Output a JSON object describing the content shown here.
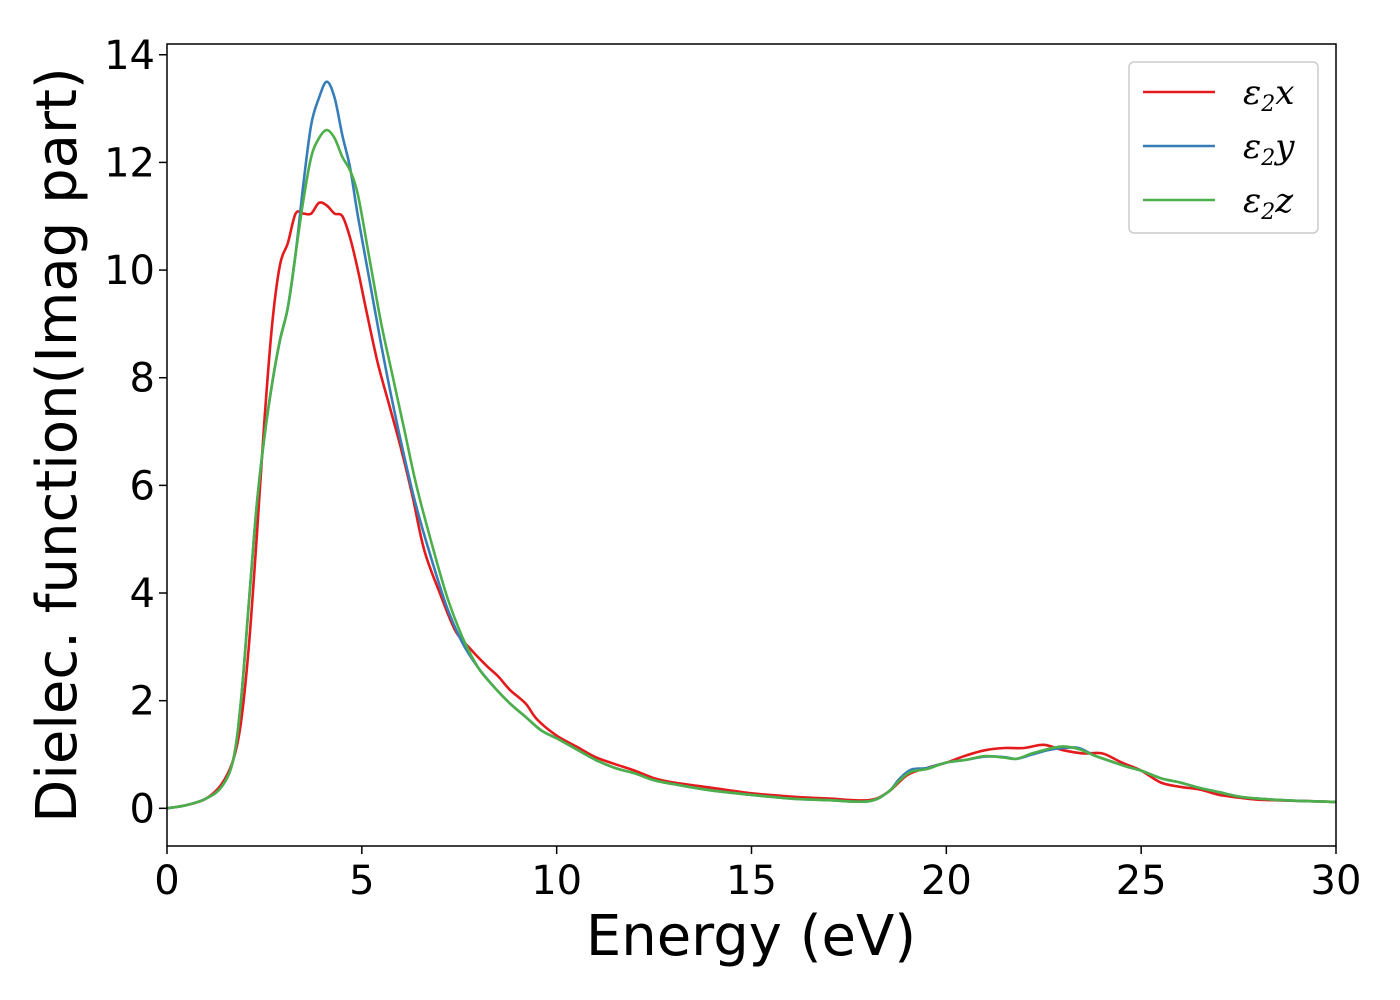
{
  "chart_data": {
    "type": "line",
    "title": "",
    "xlabel": "Energy (eV)",
    "ylabel": "Dielec. function(Imag part)",
    "xlim": [
      0,
      30
    ],
    "ylim": [
      -0.7,
      14.2
    ],
    "xticks": [
      0,
      5,
      10,
      15,
      20,
      25,
      30
    ],
    "yticks": [
      0,
      2,
      4,
      6,
      8,
      10,
      12,
      14
    ],
    "grid": false,
    "legend_position": "top-right",
    "series": [
      {
        "name": "ε₂x",
        "legend_symbol": "ε",
        "legend_sub": "2",
        "legend_var": "x",
        "color": "#e41a1c",
        "points": [
          [
            0,
            0
          ],
          [
            0.5,
            0.06
          ],
          [
            1.0,
            0.18
          ],
          [
            1.4,
            0.45
          ],
          [
            1.7,
            0.9
          ],
          [
            1.9,
            1.6
          ],
          [
            2.1,
            3.0
          ],
          [
            2.3,
            5.0
          ],
          [
            2.5,
            7.2
          ],
          [
            2.7,
            9.0
          ],
          [
            2.9,
            10.1
          ],
          [
            3.1,
            10.5
          ],
          [
            3.3,
            11.05
          ],
          [
            3.5,
            11.05
          ],
          [
            3.7,
            11.05
          ],
          [
            3.9,
            11.25
          ],
          [
            4.1,
            11.2
          ],
          [
            4.3,
            11.05
          ],
          [
            4.5,
            11.0
          ],
          [
            4.7,
            10.6
          ],
          [
            4.9,
            10.0
          ],
          [
            5.1,
            9.3
          ],
          [
            5.4,
            8.3
          ],
          [
            5.7,
            7.5
          ],
          [
            6.0,
            6.7
          ],
          [
            6.3,
            5.8
          ],
          [
            6.6,
            4.8
          ],
          [
            7.0,
            4.0
          ],
          [
            7.4,
            3.3
          ],
          [
            7.8,
            2.95
          ],
          [
            8.2,
            2.65
          ],
          [
            8.5,
            2.45
          ],
          [
            8.8,
            2.2
          ],
          [
            9.2,
            1.95
          ],
          [
            9.5,
            1.65
          ],
          [
            10.0,
            1.35
          ],
          [
            10.5,
            1.15
          ],
          [
            11.0,
            0.95
          ],
          [
            11.5,
            0.82
          ],
          [
            12.0,
            0.7
          ],
          [
            12.5,
            0.56
          ],
          [
            13.0,
            0.48
          ],
          [
            14.0,
            0.38
          ],
          [
            15.0,
            0.28
          ],
          [
            16.0,
            0.22
          ],
          [
            17.0,
            0.18
          ],
          [
            18.0,
            0.15
          ],
          [
            18.5,
            0.3
          ],
          [
            19.0,
            0.62
          ],
          [
            19.5,
            0.75
          ],
          [
            20.0,
            0.85
          ],
          [
            20.5,
            0.98
          ],
          [
            21.0,
            1.08
          ],
          [
            21.5,
            1.12
          ],
          [
            22.0,
            1.12
          ],
          [
            22.5,
            1.18
          ],
          [
            23.0,
            1.08
          ],
          [
            23.5,
            1.02
          ],
          [
            24.0,
            1.02
          ],
          [
            24.5,
            0.85
          ],
          [
            25.0,
            0.7
          ],
          [
            25.5,
            0.48
          ],
          [
            26.0,
            0.4
          ],
          [
            26.5,
            0.35
          ],
          [
            27.0,
            0.25
          ],
          [
            27.5,
            0.2
          ],
          [
            28.0,
            0.16
          ],
          [
            29.0,
            0.14
          ],
          [
            30.0,
            0.12
          ]
        ]
      },
      {
        "name": "ε₂y",
        "legend_symbol": "ε",
        "legend_sub": "2",
        "legend_var": "y",
        "color": "#377eb8",
        "points": [
          [
            0,
            0
          ],
          [
            0.5,
            0.06
          ],
          [
            1.0,
            0.18
          ],
          [
            1.4,
            0.4
          ],
          [
            1.7,
            0.9
          ],
          [
            1.9,
            2.0
          ],
          [
            2.1,
            3.8
          ],
          [
            2.3,
            5.6
          ],
          [
            2.5,
            6.9
          ],
          [
            2.7,
            7.9
          ],
          [
            2.9,
            8.7
          ],
          [
            3.1,
            9.3
          ],
          [
            3.3,
            10.3
          ],
          [
            3.5,
            11.6
          ],
          [
            3.7,
            12.7
          ],
          [
            3.9,
            13.2
          ],
          [
            4.1,
            13.5
          ],
          [
            4.3,
            13.2
          ],
          [
            4.5,
            12.5
          ],
          [
            4.7,
            11.9
          ],
          [
            4.9,
            11.0
          ],
          [
            5.2,
            9.8
          ],
          [
            5.5,
            8.6
          ],
          [
            5.8,
            7.5
          ],
          [
            6.1,
            6.5
          ],
          [
            6.4,
            5.6
          ],
          [
            6.8,
            4.6
          ],
          [
            7.2,
            3.7
          ],
          [
            7.6,
            3.05
          ],
          [
            8.0,
            2.6
          ],
          [
            8.4,
            2.25
          ],
          [
            8.8,
            1.95
          ],
          [
            9.2,
            1.7
          ],
          [
            9.6,
            1.45
          ],
          [
            10.0,
            1.3
          ],
          [
            10.5,
            1.1
          ],
          [
            11.0,
            0.9
          ],
          [
            11.5,
            0.75
          ],
          [
            12.0,
            0.65
          ],
          [
            12.5,
            0.52
          ],
          [
            13.0,
            0.45
          ],
          [
            14.0,
            0.33
          ],
          [
            15.0,
            0.25
          ],
          [
            16.0,
            0.18
          ],
          [
            17.0,
            0.15
          ],
          [
            18.0,
            0.13
          ],
          [
            18.5,
            0.3
          ],
          [
            18.8,
            0.55
          ],
          [
            19.1,
            0.72
          ],
          [
            19.5,
            0.75
          ],
          [
            20.0,
            0.85
          ],
          [
            20.5,
            0.9
          ],
          [
            21.0,
            0.96
          ],
          [
            21.5,
            0.95
          ],
          [
            21.8,
            0.92
          ],
          [
            22.2,
            1.0
          ],
          [
            22.6,
            1.08
          ],
          [
            23.0,
            1.12
          ],
          [
            23.4,
            1.12
          ],
          [
            23.8,
            0.98
          ],
          [
            24.2,
            0.88
          ],
          [
            24.6,
            0.78
          ],
          [
            25.0,
            0.7
          ],
          [
            25.5,
            0.56
          ],
          [
            26.0,
            0.48
          ],
          [
            26.5,
            0.38
          ],
          [
            27.0,
            0.3
          ],
          [
            27.5,
            0.22
          ],
          [
            28.0,
            0.18
          ],
          [
            29.0,
            0.14
          ],
          [
            30.0,
            0.12
          ]
        ]
      },
      {
        "name": "ε₂z",
        "legend_symbol": "ε",
        "legend_sub": "2",
        "legend_var": "z",
        "color": "#4daf4a",
        "points": [
          [
            0,
            0
          ],
          [
            0.5,
            0.06
          ],
          [
            1.0,
            0.18
          ],
          [
            1.4,
            0.4
          ],
          [
            1.7,
            0.9
          ],
          [
            1.9,
            2.0
          ],
          [
            2.1,
            3.8
          ],
          [
            2.3,
            5.6
          ],
          [
            2.5,
            6.9
          ],
          [
            2.7,
            7.9
          ],
          [
            2.9,
            8.7
          ],
          [
            3.1,
            9.3
          ],
          [
            3.3,
            10.3
          ],
          [
            3.5,
            11.3
          ],
          [
            3.7,
            12.1
          ],
          [
            3.9,
            12.45
          ],
          [
            4.1,
            12.6
          ],
          [
            4.3,
            12.45
          ],
          [
            4.5,
            12.1
          ],
          [
            4.7,
            11.85
          ],
          [
            4.9,
            11.4
          ],
          [
            5.2,
            10.2
          ],
          [
            5.5,
            9.0
          ],
          [
            5.8,
            8.0
          ],
          [
            6.1,
            7.0
          ],
          [
            6.4,
            6.0
          ],
          [
            6.8,
            4.9
          ],
          [
            7.2,
            3.9
          ],
          [
            7.6,
            3.15
          ],
          [
            8.0,
            2.6
          ],
          [
            8.4,
            2.25
          ],
          [
            8.8,
            1.95
          ],
          [
            9.2,
            1.7
          ],
          [
            9.6,
            1.45
          ],
          [
            10.0,
            1.3
          ],
          [
            10.5,
            1.1
          ],
          [
            11.0,
            0.9
          ],
          [
            11.5,
            0.75
          ],
          [
            12.0,
            0.65
          ],
          [
            12.5,
            0.52
          ],
          [
            13.0,
            0.45
          ],
          [
            14.0,
            0.33
          ],
          [
            15.0,
            0.25
          ],
          [
            16.0,
            0.18
          ],
          [
            17.0,
            0.15
          ],
          [
            18.0,
            0.13
          ],
          [
            18.5,
            0.3
          ],
          [
            18.8,
            0.52
          ],
          [
            19.1,
            0.68
          ],
          [
            19.5,
            0.73
          ],
          [
            20.0,
            0.85
          ],
          [
            20.5,
            0.9
          ],
          [
            21.0,
            0.97
          ],
          [
            21.5,
            0.94
          ],
          [
            21.8,
            0.92
          ],
          [
            22.2,
            1.02
          ],
          [
            22.6,
            1.1
          ],
          [
            23.0,
            1.15
          ],
          [
            23.4,
            1.1
          ],
          [
            23.8,
            0.98
          ],
          [
            24.2,
            0.88
          ],
          [
            24.6,
            0.78
          ],
          [
            25.0,
            0.7
          ],
          [
            25.5,
            0.56
          ],
          [
            26.0,
            0.48
          ],
          [
            26.5,
            0.38
          ],
          [
            27.0,
            0.3
          ],
          [
            27.5,
            0.22
          ],
          [
            28.0,
            0.18
          ],
          [
            29.0,
            0.14
          ],
          [
            30.0,
            0.12
          ]
        ]
      }
    ]
  }
}
